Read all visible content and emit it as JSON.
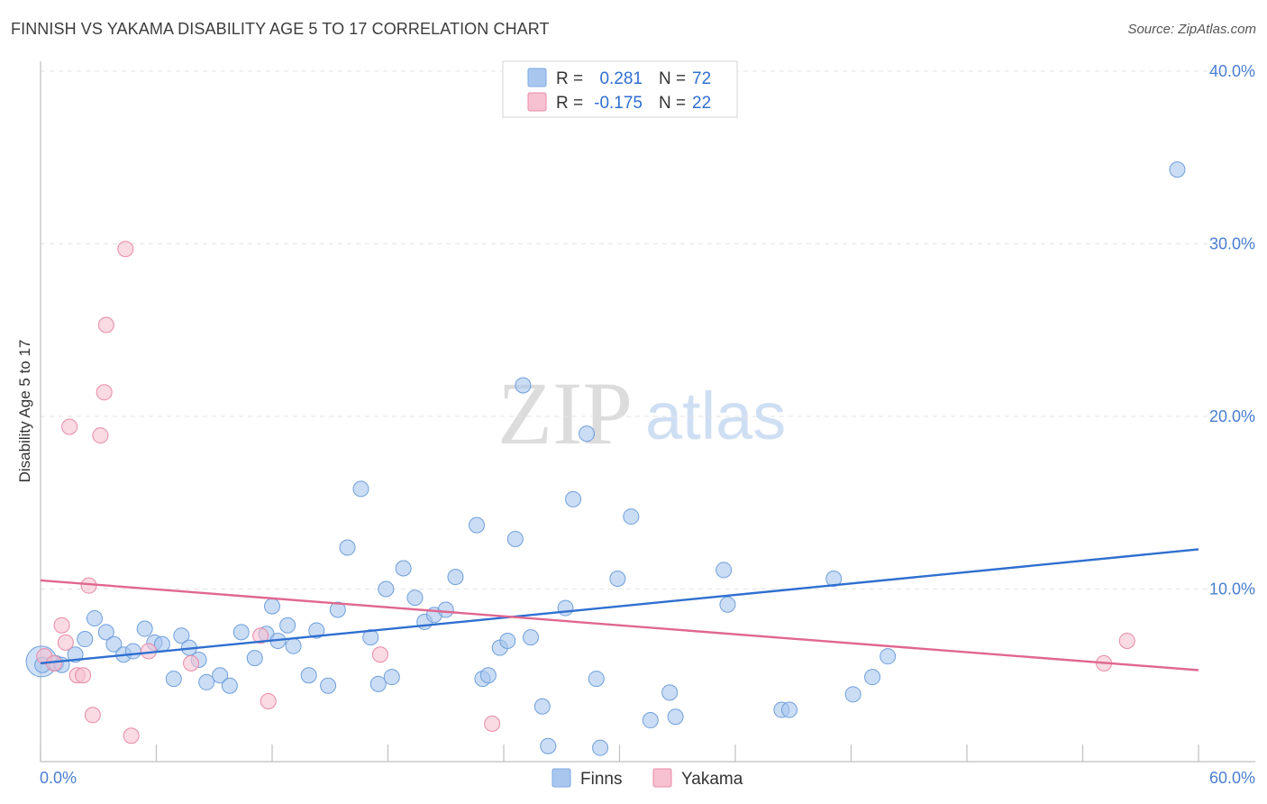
{
  "header": {
    "title": "FINNISH VS YAKAMA DISABILITY AGE 5 TO 17 CORRELATION CHART",
    "source": "Source: ZipAtlas.com"
  },
  "watermark": {
    "zip": "ZIP",
    "atlas": "atlas"
  },
  "legend_top": {
    "rows": [
      {
        "r_label": "R =",
        "r_value": "0.281",
        "n_label": "N =",
        "n_value": "72",
        "color": "#a9c7ee"
      },
      {
        "r_label": "R =",
        "r_value": "-0.175",
        "n_label": "N =",
        "n_value": "22",
        "color": "#f5b8c9"
      }
    ]
  },
  "legend_bottom": {
    "items": [
      {
        "label": "Finns",
        "color": "#a9c7ee"
      },
      {
        "label": "Yakama",
        "color": "#f5b8c9"
      }
    ]
  },
  "colors": {
    "finns_fill": "#a9c7ee",
    "finns_stroke": "#6f9fdc",
    "finns_line": "#2f6fd0",
    "yakama_fill": "#f7c1d1",
    "yakama_stroke": "#e88aa6",
    "yakama_line": "#e0678f",
    "tick_text": "#4a7fd1"
  },
  "chart_data": {
    "type": "scatter",
    "title": "FINNISH VS YAKAMA DISABILITY AGE 5 TO 17 CORRELATION CHART",
    "xlabel": "",
    "ylabel": "Disability Age 5 to 17",
    "xlim": [
      0,
      60
    ],
    "ylim": [
      0,
      40
    ],
    "x_tick_labels": [
      "0.0%",
      "60.0%"
    ],
    "y_ticks": [
      10,
      20,
      30,
      40
    ],
    "y_tick_labels": [
      "10.0%",
      "20.0%",
      "30.0%",
      "40.0%"
    ],
    "grid": true,
    "legend_position": "top-center",
    "series": [
      {
        "name": "Finns",
        "r": 0.281,
        "n": 72,
        "trend": [
          [
            0,
            5.7
          ],
          [
            60,
            12.3
          ]
        ],
        "points": [
          [
            0.1,
            5.6
          ],
          [
            0.8,
            5.7
          ],
          [
            1.1,
            5.6
          ],
          [
            1.8,
            6.2
          ],
          [
            2.3,
            7.1
          ],
          [
            2.8,
            8.3
          ],
          [
            3.4,
            7.5
          ],
          [
            3.8,
            6.8
          ],
          [
            4.3,
            6.2
          ],
          [
            4.8,
            6.4
          ],
          [
            5.4,
            7.7
          ],
          [
            5.9,
            6.9
          ],
          [
            6.3,
            6.8
          ],
          [
            6.9,
            4.8
          ],
          [
            7.3,
            7.3
          ],
          [
            7.7,
            6.6
          ],
          [
            8.2,
            5.9
          ],
          [
            8.6,
            4.6
          ],
          [
            9.3,
            5.0
          ],
          [
            9.8,
            4.4
          ],
          [
            10.4,
            7.5
          ],
          [
            11.1,
            6.0
          ],
          [
            11.7,
            7.4
          ],
          [
            12.0,
            9.0
          ],
          [
            12.3,
            7.0
          ],
          [
            12.8,
            7.9
          ],
          [
            13.1,
            6.7
          ],
          [
            13.9,
            5.0
          ],
          [
            14.3,
            7.6
          ],
          [
            14.9,
            4.4
          ],
          [
            15.4,
            8.8
          ],
          [
            15.9,
            12.4
          ],
          [
            16.6,
            15.8
          ],
          [
            17.1,
            7.2
          ],
          [
            17.5,
            4.5
          ],
          [
            17.9,
            10.0
          ],
          [
            18.2,
            4.9
          ],
          [
            18.8,
            11.2
          ],
          [
            19.4,
            9.5
          ],
          [
            19.9,
            8.1
          ],
          [
            20.4,
            8.5
          ],
          [
            21.0,
            8.8
          ],
          [
            21.5,
            10.7
          ],
          [
            22.6,
            13.7
          ],
          [
            22.9,
            4.8
          ],
          [
            23.2,
            5.0
          ],
          [
            23.8,
            6.6
          ],
          [
            24.2,
            7.0
          ],
          [
            24.6,
            12.9
          ],
          [
            25.0,
            21.8
          ],
          [
            25.4,
            7.2
          ],
          [
            26.0,
            3.2
          ],
          [
            26.3,
            0.9
          ],
          [
            27.2,
            8.9
          ],
          [
            27.6,
            15.2
          ],
          [
            28.3,
            19.0
          ],
          [
            28.8,
            4.8
          ],
          [
            29.0,
            0.8
          ],
          [
            29.9,
            10.6
          ],
          [
            30.6,
            14.2
          ],
          [
            31.6,
            2.4
          ],
          [
            32.6,
            4.0
          ],
          [
            32.9,
            2.6
          ],
          [
            35.4,
            11.1
          ],
          [
            35.6,
            9.1
          ],
          [
            38.4,
            3.0
          ],
          [
            38.8,
            3.0
          ],
          [
            41.1,
            10.6
          ],
          [
            42.1,
            3.9
          ],
          [
            43.1,
            4.9
          ],
          [
            43.9,
            6.1
          ],
          [
            58.9,
            34.3
          ]
        ]
      },
      {
        "name": "Yakama",
        "r": -0.175,
        "n": 22,
        "trend": [
          [
            0,
            10.5
          ],
          [
            60,
            5.3
          ]
        ],
        "points": [
          [
            0.2,
            6.1
          ],
          [
            0.7,
            5.7
          ],
          [
            1.1,
            7.9
          ],
          [
            1.3,
            6.9
          ],
          [
            1.5,
            19.4
          ],
          [
            1.9,
            5.0
          ],
          [
            2.2,
            5.0
          ],
          [
            2.5,
            10.2
          ],
          [
            2.7,
            2.7
          ],
          [
            3.1,
            18.9
          ],
          [
            3.3,
            21.4
          ],
          [
            3.4,
            25.3
          ],
          [
            4.4,
            29.7
          ],
          [
            4.7,
            1.5
          ],
          [
            5.6,
            6.4
          ],
          [
            7.8,
            5.7
          ],
          [
            11.4,
            7.3
          ],
          [
            11.8,
            3.5
          ],
          [
            17.6,
            6.2
          ],
          [
            23.4,
            2.2
          ],
          [
            55.1,
            5.7
          ],
          [
            56.3,
            7.0
          ]
        ]
      }
    ]
  }
}
